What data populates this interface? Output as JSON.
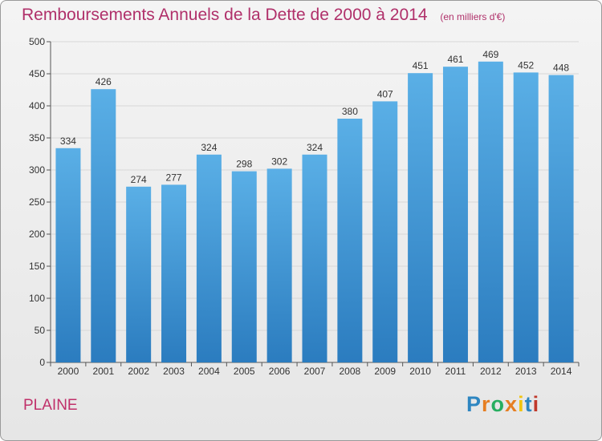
{
  "header": {
    "title": "Remboursements Annuels de la Dette de 2000 à 2014",
    "unit": "(en milliers d'€)"
  },
  "footer": {
    "location": "PLAINE",
    "logo": "Proxiti"
  },
  "colors": {
    "title": "#b0306a",
    "bar_top": "#5aafe6",
    "bar_bottom": "#2b7cbf",
    "grid": "#d8d8d8",
    "logo_letters": [
      "#2e86c1",
      "#e67e22",
      "#27ae60",
      "#e67e22",
      "#f1c40f",
      "#2e86c1",
      "#c0392b"
    ]
  },
  "chart_data": {
    "type": "bar",
    "title": "Remboursements Annuels de la Dette de 2000 à 2014",
    "subtitle": "(en milliers d'€)",
    "xlabel": "",
    "ylabel": "",
    "categories": [
      "2000",
      "2001",
      "2002",
      "2003",
      "2004",
      "2005",
      "2006",
      "2007",
      "2008",
      "2009",
      "2010",
      "2011",
      "2012",
      "2013",
      "2014"
    ],
    "values": [
      334,
      426,
      274,
      277,
      324,
      298,
      302,
      324,
      380,
      407,
      451,
      461,
      469,
      452,
      448
    ],
    "ylim": [
      0,
      500
    ],
    "yticks": [
      0,
      50,
      100,
      150,
      200,
      250,
      300,
      350,
      400,
      450,
      500
    ],
    "grid": true,
    "data_labels": true
  }
}
